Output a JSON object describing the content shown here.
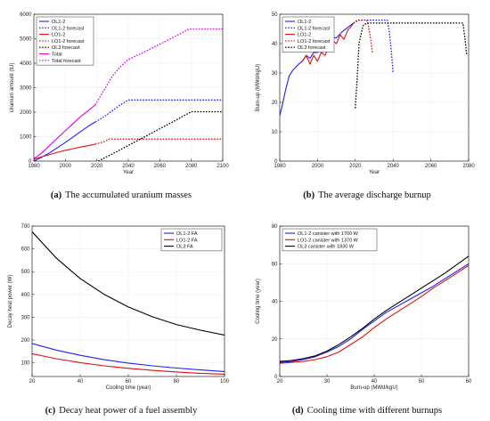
{
  "panels": [
    {
      "caption_letter": "(a)",
      "caption_text": "The accumulated uranium masses",
      "chart_data": {
        "type": "line",
        "xlabel": "Year",
        "ylabel": "Uranium amount (tU)",
        "xlim": [
          1980,
          2100
        ],
        "ylim": [
          0,
          6000
        ],
        "xticks": [
          "1980",
          "2000",
          "2020",
          "2040",
          "2060",
          "2080",
          "2100"
        ],
        "yticks": [
          "0",
          "1000",
          "2000",
          "3000",
          "4000",
          "5000",
          "6000"
        ],
        "grid": true,
        "legend_position": "top-left",
        "series": [
          {
            "name": "OL1-2",
            "color": "#1f1fff",
            "dash": "solid",
            "x": [
              1980,
              1985,
              1990,
              1995,
              2000,
              2005,
              2010,
              2015,
              2019
            ],
            "y": [
              0,
              160,
              340,
              550,
              760,
              990,
              1220,
              1440,
              1600
            ]
          },
          {
            "name": "OL1-2 forecast",
            "color": "#1f1fff",
            "dash": "dot",
            "x": [
              2019,
              2025,
              2030,
              2035,
              2040,
              2060,
              2080,
              2100
            ],
            "y": [
              1600,
              1830,
              2060,
              2300,
              2500,
              2500,
              2500,
              2500
            ]
          },
          {
            "name": "LO1-2",
            "color": "#e01010",
            "dash": "solid",
            "x": [
              1977,
              1980,
              1985,
              1990,
              1995,
              2000,
              2005,
              2010,
              2015,
              2019
            ],
            "y": [
              0,
              80,
              180,
              270,
              360,
              440,
              510,
              580,
              640,
              690
            ]
          },
          {
            "name": "LO1-2 forecast",
            "color": "#e01010",
            "dash": "dot",
            "x": [
              2019,
              2024,
              2028,
              2040,
              2060,
              2080,
              2100
            ],
            "y": [
              690,
              780,
              900,
              900,
              900,
              900,
              900
            ]
          },
          {
            "name": "OL3 forecast",
            "color": "#000000",
            "dash": "dot",
            "x": [
              2021,
              2030,
              2040,
              2050,
              2060,
              2070,
              2078,
              2080,
              2100
            ],
            "y": [
              0,
              300,
              640,
              980,
              1320,
              1660,
              1950,
              2020,
              2020
            ]
          },
          {
            "name": "Total",
            "color": "#e000e0",
            "dash": "solid",
            "x": [
              1980,
              1985,
              1990,
              1995,
              2000,
              2005,
              2010,
              2015,
              2019
            ],
            "y": [
              100,
              330,
              640,
              940,
              1240,
              1540,
              1840,
              2080,
              2300
            ]
          },
          {
            "name": "Total forecast",
            "color": "#e000e0",
            "dash": "dot",
            "x": [
              2019,
              2025,
              2030,
              2035,
              2040,
              2050,
              2060,
              2070,
              2078,
              2080,
              2100
            ],
            "y": [
              2300,
              2950,
              3480,
              3860,
              4150,
              4450,
              4780,
              5100,
              5380,
              5400,
              5400
            ]
          }
        ]
      }
    },
    {
      "caption_letter": "(b)",
      "caption_text": "The average discharge burnup",
      "chart_data": {
        "type": "line",
        "xlabel": "Year",
        "ylabel": "Burn-up (MWd/kgU)",
        "xlim": [
          1980,
          2080
        ],
        "ylim": [
          0,
          50
        ],
        "xticks": [
          "1980",
          "2000",
          "2020",
          "2040",
          "2060",
          "2080"
        ],
        "yticks": [
          "0",
          "10",
          "20",
          "30",
          "40",
          "50"
        ],
        "grid": true,
        "legend_position": "top-left",
        "series": [
          {
            "name": "OL1-2",
            "color": "#1f1fff",
            "dash": "solid",
            "x": [
              1980,
              1981,
              1983,
              1985,
              1987,
              1990,
              1992,
              1994,
              1996,
              1998,
              2000,
              2003,
              2005,
              2008,
              2010,
              2013,
              2016,
              2019
            ],
            "y": [
              15.5,
              18,
              24,
              29,
              31,
              33,
              34,
              36,
              35,
              37,
              37,
              38.5,
              39.5,
              42,
              42,
              44,
              45.5,
              47
            ]
          },
          {
            "name": "OL1-2 forecast",
            "color": "#1f1fff",
            "dash": "dot",
            "x": [
              2019,
              2022,
              2030,
              2037,
              2038,
              2039,
              2040
            ],
            "y": [
              47,
              48,
              48,
              48,
              44,
              38,
              30
            ]
          },
          {
            "name": "LO1-2",
            "color": "#e01010",
            "dash": "solid",
            "x": [
              1992,
              1994,
              1996,
              1998,
              2000,
              2002,
              2004,
              2006,
              2008,
              2010,
              2012,
              2014,
              2016,
              2018,
              2019
            ],
            "y": [
              34,
              36,
              33,
              36,
              34,
              37,
              36,
              39,
              41,
              40,
              43,
              41.5,
              44.5,
              46,
              47
            ]
          },
          {
            "name": "LO1-2 forecast",
            "color": "#e01010",
            "dash": "dot",
            "x": [
              2019,
              2021,
              2024,
              2026,
              2027,
              2028,
              2029
            ],
            "y": [
              47,
              48,
              48,
              48,
              46,
              42,
              37
            ]
          },
          {
            "name": "OL3 forecast",
            "color": "#000000",
            "dash": "dot",
            "x": [
              2020,
              2021,
              2022,
              2024,
              2026,
              2030,
              2040,
              2060,
              2077,
              2078,
              2079
            ],
            "y": [
              18,
              28,
              40,
              46,
              47,
              47,
              47,
              47,
              47,
              42,
              36
            ]
          }
        ]
      }
    },
    {
      "caption_letter": "(c)",
      "caption_text": "Decay heat power of a fuel assembly",
      "chart_data": {
        "type": "line",
        "xlabel": "Cooling time (year)",
        "ylabel": "Decay heat power (W)",
        "xlim": [
          20,
          100
        ],
        "ylim": [
          40,
          700
        ],
        "xticks": [
          "20",
          "40",
          "60",
          "80",
          "100"
        ],
        "yticks": [
          "100",
          "200",
          "300",
          "400",
          "500",
          "600",
          "700"
        ],
        "grid": true,
        "legend_position": "top-right",
        "series": [
          {
            "name": "OL1-2 FA",
            "color": "#1f1fff",
            "dash": "solid",
            "x": [
              20,
              30,
              40,
              50,
              60,
              70,
              80,
              90,
              100
            ],
            "y": [
              185,
              156,
              133,
              114,
              99,
              87,
              77,
              69,
              62
            ]
          },
          {
            "name": "LO1-2 FA",
            "color": "#e01010",
            "dash": "solid",
            "x": [
              20,
              30,
              40,
              50,
              60,
              70,
              80,
              90,
              100
            ],
            "y": [
              140,
              118,
              101,
              87,
              76,
              67,
              60,
              54,
              50
            ]
          },
          {
            "name": "OL3 FA",
            "color": "#000000",
            "dash": "solid",
            "x": [
              20,
              30,
              40,
              50,
              60,
              70,
              80,
              90,
              100
            ],
            "y": [
              675,
              560,
              470,
              400,
              345,
              302,
              268,
              243,
              222
            ]
          }
        ]
      }
    },
    {
      "caption_letter": "(d)",
      "caption_text": "Cooling time with different burnups",
      "chart_data": {
        "type": "line",
        "xlabel": "Burn-up (MWd/kgU)",
        "ylabel": "Cooling time (year)",
        "xlim": [
          20,
          60
        ],
        "ylim": [
          0,
          80
        ],
        "xticks": [
          "20",
          "30",
          "40",
          "50",
          "60"
        ],
        "yticks": [
          "0",
          "20",
          "40",
          "60",
          "80"
        ],
        "grid": true,
        "legend_position": "top-left",
        "series": [
          {
            "name": "OL1-2 canister with 1700 W",
            "color": "#1f1fff",
            "dash": "solid",
            "x": [
              20,
              22.5,
              25,
              27.5,
              30,
              32.5,
              35,
              37.5,
              40,
              42.5,
              45,
              47.5,
              50,
              52.5,
              55,
              57.5,
              60
            ],
            "y": [
              7.5,
              8,
              9,
              10.5,
              13,
              16,
              20,
              25,
              29.5,
              34,
              37.5,
              41,
              44.5,
              48,
              52,
              56,
              60
            ]
          },
          {
            "name": "LO1-2 canister with 1370 W",
            "color": "#e01010",
            "dash": "solid",
            "x": [
              20,
              22.5,
              25,
              27.5,
              30,
              32.5,
              35,
              37.5,
              40,
              42.5,
              45,
              47.5,
              50,
              52.5,
              55,
              57.5,
              60
            ],
            "y": [
              7,
              7.5,
              8,
              9,
              10.5,
              13,
              17,
              21,
              26,
              30.5,
              34.5,
              38.5,
              42.5,
              47,
              51,
              55,
              59
            ]
          },
          {
            "name": "OL3 canister with 1830 W",
            "color": "#000000",
            "dash": "solid",
            "x": [
              20,
              22.5,
              25,
              27.5,
              30,
              32.5,
              35,
              37.5,
              40,
              42.5,
              45,
              47.5,
              50,
              52.5,
              55,
              57.5,
              60
            ],
            "y": [
              8,
              8.5,
              9.5,
              11,
              13.5,
              17,
              21,
              25.5,
              30.5,
              35,
              39,
              43,
              47,
              51,
              55,
              59.5,
              64
            ]
          }
        ]
      }
    }
  ]
}
